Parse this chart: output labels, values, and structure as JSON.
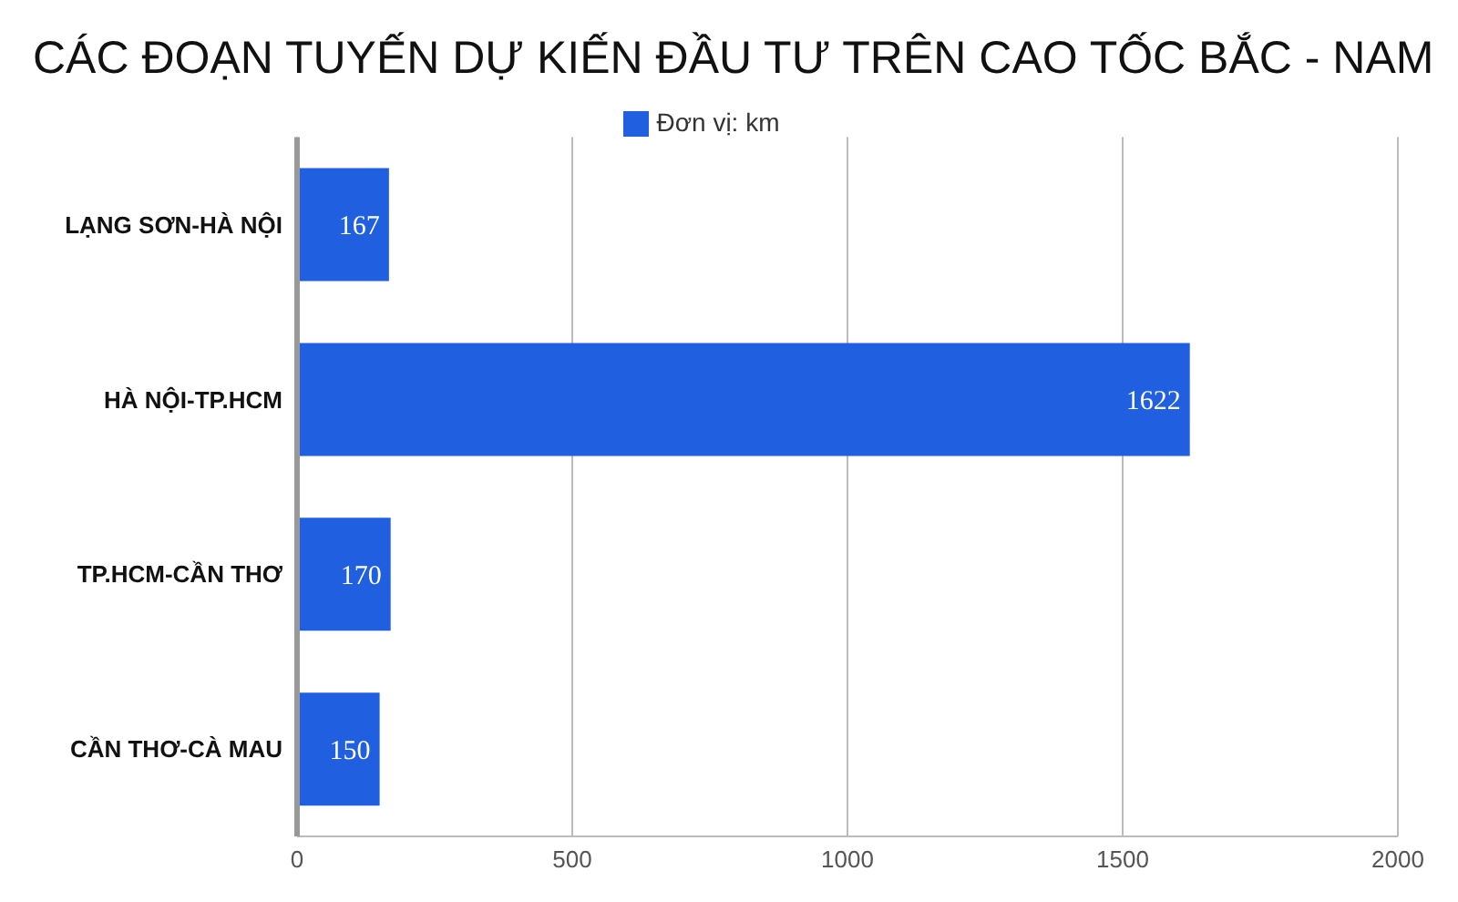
{
  "chart_data": {
    "type": "bar",
    "orientation": "horizontal",
    "title": "CÁC ĐOẠN TUYẾN DỰ KIẾN ĐẦU TƯ TRÊN CAO TỐC BẮC - NAM",
    "categories": [
      "LẠNG SƠN-HÀ NỘI",
      "HÀ NỘI-TP.HCM",
      "TP.HCM-CẦN THƠ",
      "CẦN THƠ-CÀ MAU"
    ],
    "series": [
      {
        "name": "Đơn vị: km",
        "color": "#1f5fe0",
        "values": [
          167,
          1622,
          170,
          150
        ]
      }
    ],
    "xlim": [
      0,
      2000
    ],
    "xticks": [
      0,
      500,
      1000,
      1500,
      2000
    ],
    "grid": "x",
    "legend": "top",
    "data_labels": true
  }
}
